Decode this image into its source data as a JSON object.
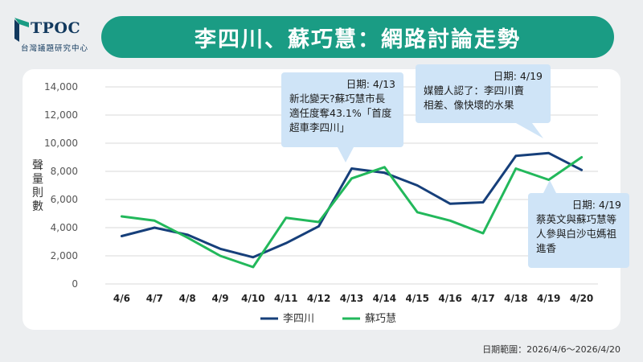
{
  "header": {
    "logo_text": "TPOC",
    "logo_sub": "台灣議題研究中心",
    "title": "李四川、蘇巧慧：網路討論走勢"
  },
  "colors": {
    "banner": "#1a9c84",
    "series1": "#163f7a",
    "series2": "#22b85b",
    "callout": "#cfe4f7"
  },
  "chart_data": {
    "type": "line",
    "title": "李四川、蘇巧慧：網路討論走勢",
    "ylabel": "聲量則數",
    "xlabel": "",
    "categories": [
      "4/6",
      "4/7",
      "4/8",
      "4/9",
      "4/10",
      "4/11",
      "4/12",
      "4/13",
      "4/14",
      "4/15",
      "4/16",
      "4/17",
      "4/18",
      "4/19",
      "4/20"
    ],
    "ylim": [
      0,
      14000
    ],
    "yticks": [
      "0",
      "2,000",
      "4,000",
      "6,000",
      "8,000",
      "10,000",
      "12,000",
      "14,000"
    ],
    "grid": true,
    "legend": "bottom",
    "series": [
      {
        "name": "李四川",
        "color": "#163f7a",
        "values": [
          3400,
          4000,
          3500,
          2500,
          1900,
          2900,
          4100,
          8200,
          7900,
          7000,
          5700,
          5800,
          9100,
          9300,
          8100
        ]
      },
      {
        "name": "蘇巧慧",
        "color": "#22b85b",
        "values": [
          4800,
          4500,
          3300,
          2000,
          1200,
          4700,
          4400,
          7500,
          8300,
          5100,
          4500,
          3600,
          8200,
          7400,
          9000
        ]
      }
    ]
  },
  "annotations": [
    {
      "date": "日期: 4/13",
      "text": [
        "新北變天?蘇巧慧市長",
        "適任度奪43.1%「首度",
        "超車李四川」"
      ]
    },
    {
      "date": "日期: 4/19",
      "text": [
        "媒體人認了：李四川賣",
        "相差、像快壞的水果"
      ]
    },
    {
      "date": "日期: 4/19",
      "text": [
        "蔡英文與蘇巧慧等",
        "人參與白沙屯媽祖",
        "進香"
      ]
    }
  ],
  "footer": {
    "date_range": "日期範圍：2026/4/6～2026/4/20"
  }
}
